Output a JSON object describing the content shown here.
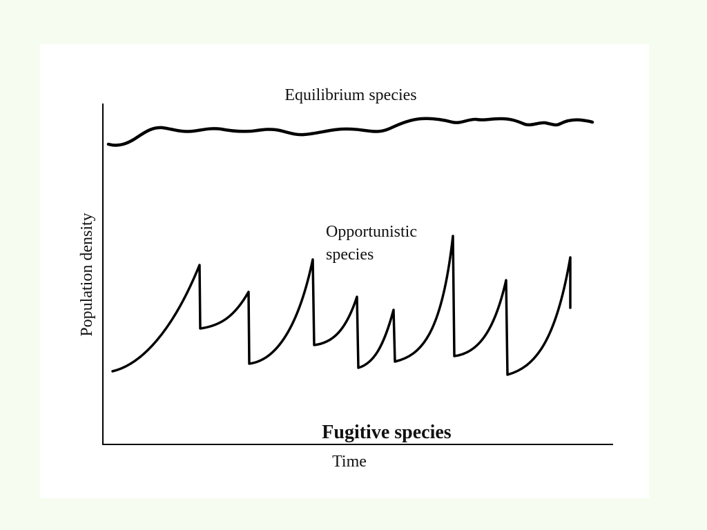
{
  "figure": {
    "series": {
      "equilibrium": "Equilibrium species",
      "opportunistic_line1": "Opportunistic",
      "opportunistic_line2": "species"
    },
    "axes": {
      "y_label": "Population density",
      "x_label": "Time"
    },
    "caption": "Fugitive species",
    "colors": {
      "background": "#f6fdf0",
      "panel": "#ffffff",
      "ink": "#000000"
    }
  }
}
